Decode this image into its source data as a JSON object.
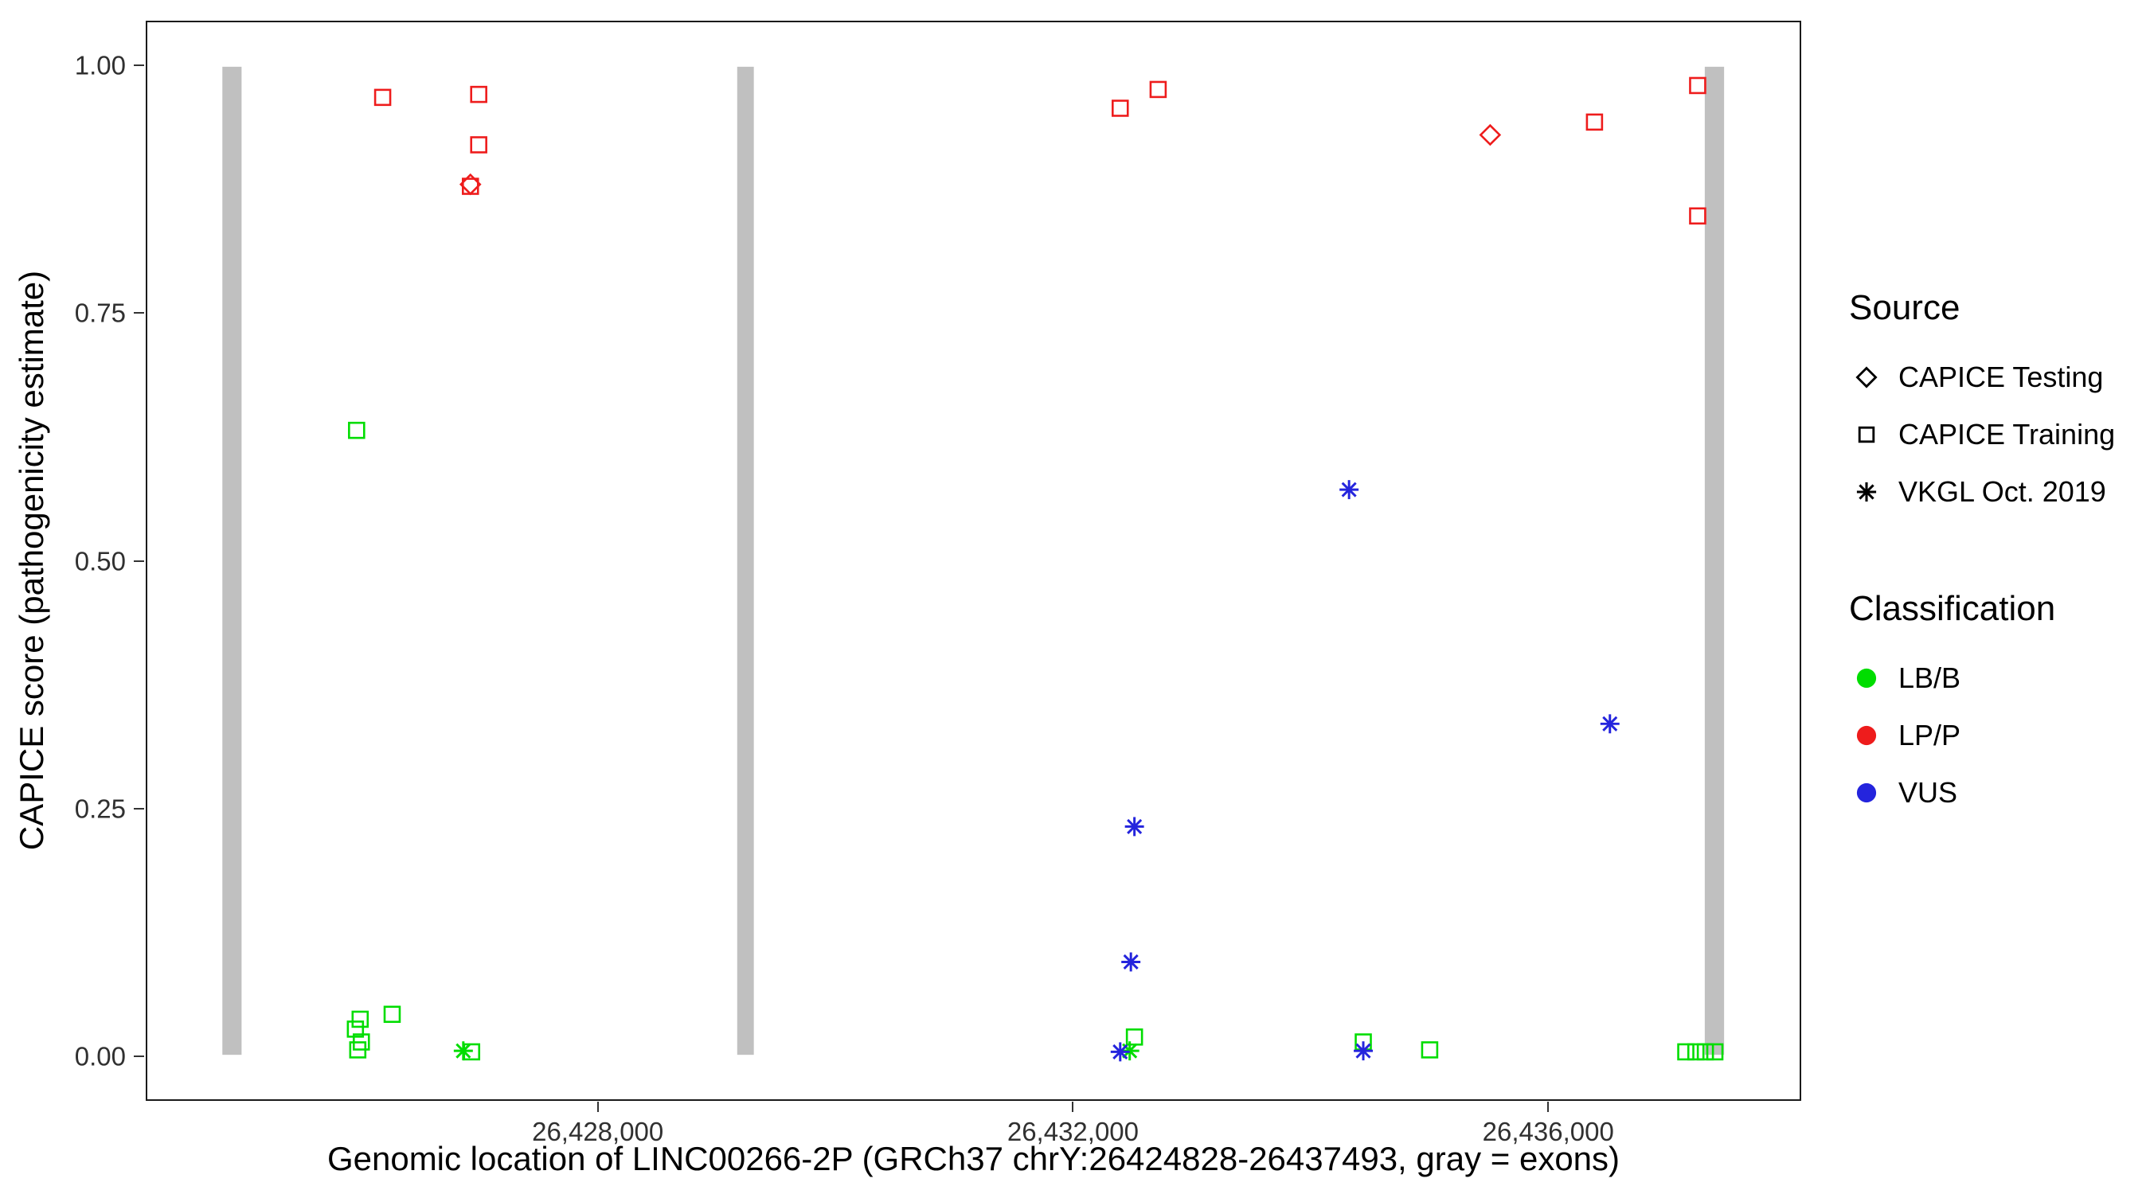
{
  "figure": {
    "background": "#ffffff",
    "panel_border_color": "#1a1a1a"
  },
  "legend": {
    "source": {
      "title": "Source",
      "items": [
        {
          "label": "CAPICE Testing",
          "shape": "diamond"
        },
        {
          "label": "CAPICE Training",
          "shape": "square"
        },
        {
          "label": "VKGL Oct. 2019",
          "shape": "asterisk"
        }
      ]
    },
    "classification": {
      "title": "Classification",
      "items": [
        {
          "label": "LB/B",
          "color_key": "LB/B"
        },
        {
          "label": "LP/P",
          "color_key": "LP/P"
        },
        {
          "label": "VUS",
          "color_key": "VUS"
        }
      ]
    }
  },
  "chart_data": {
    "type": "scatter",
    "title": "",
    "xlabel": "Genomic location of LINC00266-2P (GRCh37 chrY:26424828-26437493, gray = exons)",
    "ylabel": "CAPICE score (pathogenicity estimate)",
    "x_range": [
      26424195,
      26438130
    ],
    "y_range": [
      -0.045,
      1.045
    ],
    "x_ticks": [
      {
        "value": 26428000,
        "label": "26,428,000"
      },
      {
        "value": 26432000,
        "label": "26,432,000"
      },
      {
        "value": 26436000,
        "label": "26,436,000"
      }
    ],
    "y_ticks": [
      {
        "value": 0.0,
        "label": "0.00"
      },
      {
        "value": 0.25,
        "label": "0.25"
      },
      {
        "value": 0.5,
        "label": "0.50"
      },
      {
        "value": 0.75,
        "label": "0.75"
      },
      {
        "value": 1.0,
        "label": "1.00"
      }
    ],
    "grid": false,
    "legend_position": "right",
    "exon_color": "#c0c0c0",
    "exons": [
      {
        "start": 26424828,
        "end": 26424990
      },
      {
        "start": 26429170,
        "end": 26429310
      },
      {
        "start": 26437330,
        "end": 26437493
      }
    ],
    "colors": {
      "LB/B": "#00dd00",
      "LP/P": "#ee1c1c",
      "VUS": "#2424dd"
    },
    "points": [
      {
        "x": 26426180,
        "y": 0.969,
        "source": "CAPICE Training",
        "classification": "LP/P"
      },
      {
        "x": 26426990,
        "y": 0.972,
        "source": "CAPICE Training",
        "classification": "LP/P"
      },
      {
        "x": 26426990,
        "y": 0.921,
        "source": "CAPICE Training",
        "classification": "LP/P"
      },
      {
        "x": 26426920,
        "y": 0.879,
        "source": "CAPICE Training",
        "classification": "LP/P"
      },
      {
        "x": 26432400,
        "y": 0.958,
        "source": "CAPICE Training",
        "classification": "LP/P"
      },
      {
        "x": 26432720,
        "y": 0.977,
        "source": "CAPICE Training",
        "classification": "LP/P"
      },
      {
        "x": 26436400,
        "y": 0.944,
        "source": "CAPICE Training",
        "classification": "LP/P"
      },
      {
        "x": 26437270,
        "y": 0.981,
        "source": "CAPICE Training",
        "classification": "LP/P"
      },
      {
        "x": 26437270,
        "y": 0.849,
        "source": "CAPICE Training",
        "classification": "LP/P"
      },
      {
        "x": 26426920,
        "y": 0.881,
        "source": "CAPICE Testing",
        "classification": "LP/P"
      },
      {
        "x": 26435520,
        "y": 0.931,
        "source": "CAPICE Testing",
        "classification": "LP/P"
      },
      {
        "x": 26425960,
        "y": 0.632,
        "source": "CAPICE Training",
        "classification": "LB/B"
      },
      {
        "x": 26425990,
        "y": 0.036,
        "source": "CAPICE Training",
        "classification": "LB/B"
      },
      {
        "x": 26425950,
        "y": 0.026,
        "source": "CAPICE Training",
        "classification": "LB/B"
      },
      {
        "x": 26426000,
        "y": 0.013,
        "source": "CAPICE Training",
        "classification": "LB/B"
      },
      {
        "x": 26425970,
        "y": 0.005,
        "source": "CAPICE Training",
        "classification": "LB/B"
      },
      {
        "x": 26426260,
        "y": 0.041,
        "source": "CAPICE Training",
        "classification": "LB/B"
      },
      {
        "x": 26426930,
        "y": 0.003,
        "source": "CAPICE Training",
        "classification": "LB/B"
      },
      {
        "x": 26432520,
        "y": 0.018,
        "source": "CAPICE Training",
        "classification": "LB/B"
      },
      {
        "x": 26434450,
        "y": 0.013,
        "source": "CAPICE Training",
        "classification": "LB/B"
      },
      {
        "x": 26435010,
        "y": 0.005,
        "source": "CAPICE Training",
        "classification": "LB/B"
      },
      {
        "x": 26437170,
        "y": 0.003,
        "source": "CAPICE Training",
        "classification": "LB/B"
      },
      {
        "x": 26437255,
        "y": 0.003,
        "source": "CAPICE Training",
        "classification": "LB/B"
      },
      {
        "x": 26437335,
        "y": 0.003,
        "source": "CAPICE Training",
        "classification": "LB/B"
      },
      {
        "x": 26437415,
        "y": 0.003,
        "source": "CAPICE Training",
        "classification": "LB/B"
      },
      {
        "x": 26426860,
        "y": 0.004,
        "source": "VKGL Oct. 2019",
        "classification": "LB/B"
      },
      {
        "x": 26432480,
        "y": 0.004,
        "source": "VKGL Oct. 2019",
        "classification": "LB/B"
      },
      {
        "x": 26434330,
        "y": 0.572,
        "source": "VKGL Oct. 2019",
        "classification": "VUS"
      },
      {
        "x": 26436530,
        "y": 0.335,
        "source": "VKGL Oct. 2019",
        "classification": "VUS"
      },
      {
        "x": 26432520,
        "y": 0.231,
        "source": "VKGL Oct. 2019",
        "classification": "VUS"
      },
      {
        "x": 26432490,
        "y": 0.094,
        "source": "VKGL Oct. 2019",
        "classification": "VUS"
      },
      {
        "x": 26432400,
        "y": 0.003,
        "source": "VKGL Oct. 2019",
        "classification": "VUS"
      },
      {
        "x": 26434450,
        "y": 0.004,
        "source": "VKGL Oct. 2019",
        "classification": "VUS"
      }
    ]
  }
}
